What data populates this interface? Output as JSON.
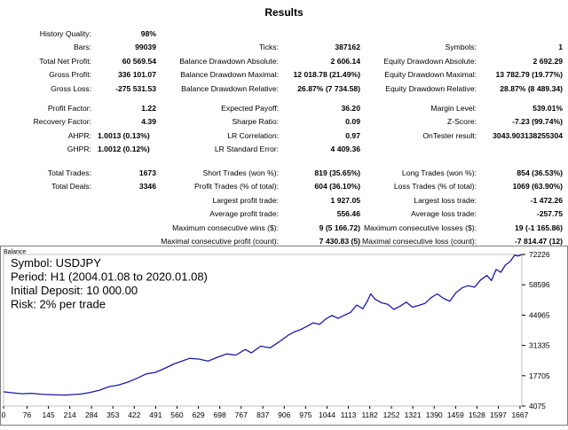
{
  "report": {
    "title": "Results",
    "groups": [
      {
        "name": "row1",
        "cells": [
          {
            "label": "History Quality:",
            "value": "98%",
            "col": 0,
            "row": 0
          },
          {
            "label": "Bars:",
            "value": "99039",
            "col": 0,
            "row": 1
          },
          {
            "label": "Ticks:",
            "value": "387162",
            "col": 1,
            "row": 1
          },
          {
            "label": "Symbols:",
            "value": "1",
            "col": 2,
            "row": 1
          },
          {
            "label": "Total Net Profit:",
            "value": "60 569.54",
            "col": 0,
            "row": 2
          },
          {
            "label": "Balance Drawdown Absolute:",
            "value": "2 606.14",
            "col": 1,
            "row": 2
          },
          {
            "label": "Equity Drawdown Absolute:",
            "value": "2 692.29",
            "col": 2,
            "row": 2
          },
          {
            "label": "Gross Profit:",
            "value": "336 101.07",
            "col": 0,
            "row": 3
          },
          {
            "label": "Balance Drawdown Maximal:",
            "value": "12 018.78 (21.49%)",
            "col": 1,
            "row": 3
          },
          {
            "label": "Equity Drawdown Maximal:",
            "value": "13 782.79 (19.77%)",
            "col": 2,
            "row": 3
          },
          {
            "label": "Gross Loss:",
            "value": "-275 531.53",
            "col": 0,
            "row": 4
          },
          {
            "label": "Balance Drawdown Relative:",
            "value": "26.87% (7 734.58)",
            "col": 1,
            "row": 4
          },
          {
            "label": "Equity Drawdown Relative:",
            "value": "28.87% (8 489.34)",
            "col": 2,
            "row": 4
          }
        ]
      },
      {
        "name": "row2",
        "cells": [
          {
            "label": "Profit Factor:",
            "value": "1.22",
            "col": 0,
            "row": 0
          },
          {
            "label": "Expected Payoff:",
            "value": "36.20",
            "col": 1,
            "row": 0
          },
          {
            "label": "Margin Level:",
            "value": "539.01%",
            "col": 2,
            "row": 0
          },
          {
            "label": "Recovery Factor:",
            "value": "4.39",
            "col": 0,
            "row": 1
          },
          {
            "label": "Sharpe Ratio:",
            "value": "0.09",
            "col": 1,
            "row": 1
          },
          {
            "label": "Z-Score:",
            "value": "-7.23 (99.74%)",
            "col": 2,
            "row": 1
          },
          {
            "label": "AHPR:",
            "value": "1.0013 (0.13%)",
            "col": 0,
            "row": 2,
            "left": true
          },
          {
            "label": "LR Correlation:",
            "value": "0.97",
            "col": 1,
            "row": 2
          },
          {
            "label": "OnTester result:",
            "value": "3043.903138255304",
            "col": 2,
            "row": 2
          },
          {
            "label": "GHPR:",
            "value": "1.0012 (0.12%)",
            "col": 0,
            "row": 3,
            "left": true
          },
          {
            "label": "LR Standard Error:",
            "value": "4 409.36",
            "col": 1,
            "row": 3
          }
        ]
      },
      {
        "name": "row3",
        "cells": [
          {
            "label": "Total Trades:",
            "value": "1673",
            "col": 0,
            "row": 0
          },
          {
            "label": "Short Trades (won %):",
            "value": "819 (35.65%)",
            "col": 1,
            "row": 0
          },
          {
            "label": "Long Trades (won %):",
            "value": "854 (36.53%)",
            "col": 2,
            "row": 0
          },
          {
            "label": "Total Deals:",
            "value": "3346",
            "col": 0,
            "row": 1
          },
          {
            "label": "Profit Trades (% of total):",
            "value": "604 (36.10%)",
            "col": 1,
            "row": 1
          },
          {
            "label": "Loss Trades (% of total):",
            "value": "1069 (63.90%)",
            "col": 2,
            "row": 1
          },
          {
            "label": "Largest profit trade:",
            "value": "1 927.05",
            "col": 1,
            "row": 2
          },
          {
            "label": "Largest loss trade:",
            "value": "-1 472.26",
            "col": 2,
            "row": 2
          },
          {
            "label": "Average profit trade:",
            "value": "556.46",
            "col": 1,
            "row": 3
          },
          {
            "label": "Average loss trade:",
            "value": "-257.75",
            "col": 2,
            "row": 3
          },
          {
            "label": "Maximum consecutive wins ($):",
            "value": "9 (5 166.72)",
            "col": 1,
            "row": 4
          },
          {
            "label": "Maximum consecutive losses ($):",
            "value": "19 (-1 165.86)",
            "col": 2,
            "row": 4
          },
          {
            "label": "Maximal consecutive profit (count):",
            "value": "7 430.83 (5)",
            "col": 1,
            "row": 5
          },
          {
            "label": "Maximal consecutive loss (count):",
            "value": "-7 814.47 (12)",
            "col": 2,
            "row": 5
          },
          {
            "label": "Average consecutive wins:",
            "value": "2",
            "col": 1,
            "row": 6
          },
          {
            "label": "Average consecutive losses:",
            "value": "3",
            "col": 2,
            "row": 6
          }
        ]
      }
    ]
  },
  "chart_data": {
    "type": "line",
    "title": "Balance",
    "annotations": [
      "Symbol: USDJPY",
      "Period: H1 (2004.01.08 to 2020.01.08)",
      "Initial Deposit: 10 000.00",
      "Risk: 2% per trade"
    ],
    "x_ticks": [
      0,
      76,
      145,
      214,
      284,
      353,
      422,
      491,
      560,
      629,
      698,
      767,
      837,
      906,
      975,
      1044,
      1113,
      1182,
      1252,
      1321,
      1390,
      1459,
      1528,
      1597,
      1667
    ],
    "y_ticks": [
      72226,
      58596,
      44965,
      31335,
      17705,
      4075
    ],
    "xlim": [
      0,
      1673
    ],
    "ylim": [
      4075,
      72226
    ],
    "series": [
      {
        "name": "",
        "color": "#1a1aa6",
        "x": [
          0,
          30,
          60,
          90,
          120,
          150,
          200,
          250,
          280,
          310,
          340,
          370,
          400,
          430,
          460,
          490,
          520,
          550,
          580,
          600,
          630,
          660,
          690,
          720,
          750,
          780,
          800,
          830,
          860,
          890,
          920,
          940,
          960,
          980,
          1000,
          1020,
          1040,
          1060,
          1080,
          1100,
          1120,
          1140,
          1160,
          1175,
          1185,
          1200,
          1220,
          1240,
          1260,
          1280,
          1300,
          1320,
          1340,
          1360,
          1380,
          1400,
          1420,
          1440,
          1460,
          1480,
          1500,
          1520,
          1540,
          1560,
          1575,
          1590,
          1605,
          1620,
          1635,
          1650,
          1660,
          1673
        ],
        "y": [
          10500,
          10000,
          9600,
          9800,
          9400,
          9200,
          9000,
          9500,
          10200,
          11200,
          12800,
          13500,
          14800,
          16500,
          18500,
          19200,
          21000,
          23000,
          24500,
          25500,
          25200,
          24300,
          26000,
          27500,
          27000,
          29500,
          28000,
          31000,
          30200,
          33000,
          36000,
          37500,
          38500,
          40000,
          41500,
          40800,
          43200,
          44800,
          43500,
          44900,
          46200,
          49500,
          47800,
          51500,
          54500,
          52000,
          50500,
          49800,
          47500,
          49000,
          50800,
          48500,
          49300,
          50200,
          52800,
          54500,
          52500,
          51200,
          55000,
          57200,
          58200,
          57500,
          60800,
          62800,
          60500,
          65500,
          64200,
          67500,
          69000,
          72000,
          71500,
          72226
        ]
      }
    ]
  }
}
